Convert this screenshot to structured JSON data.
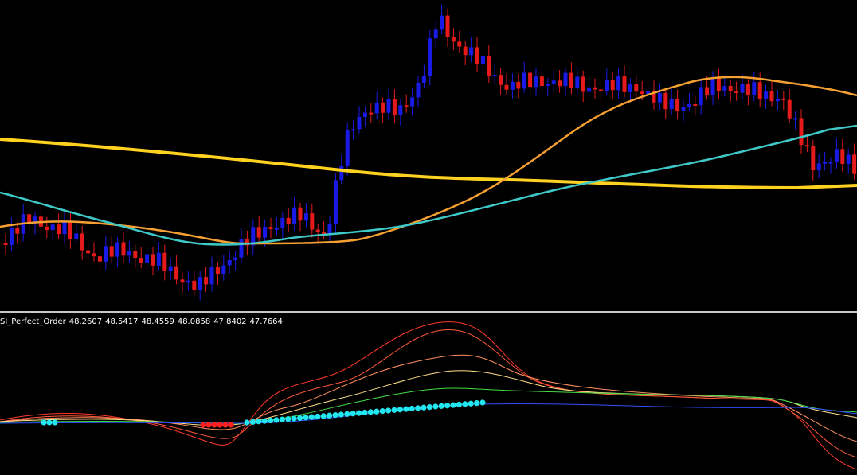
{
  "indicator": {
    "name": "SI_Perfect_Order",
    "values": [
      48.2607,
      48.5417,
      48.4559,
      48.0858,
      47.8402,
      47.7664
    ]
  }
}
